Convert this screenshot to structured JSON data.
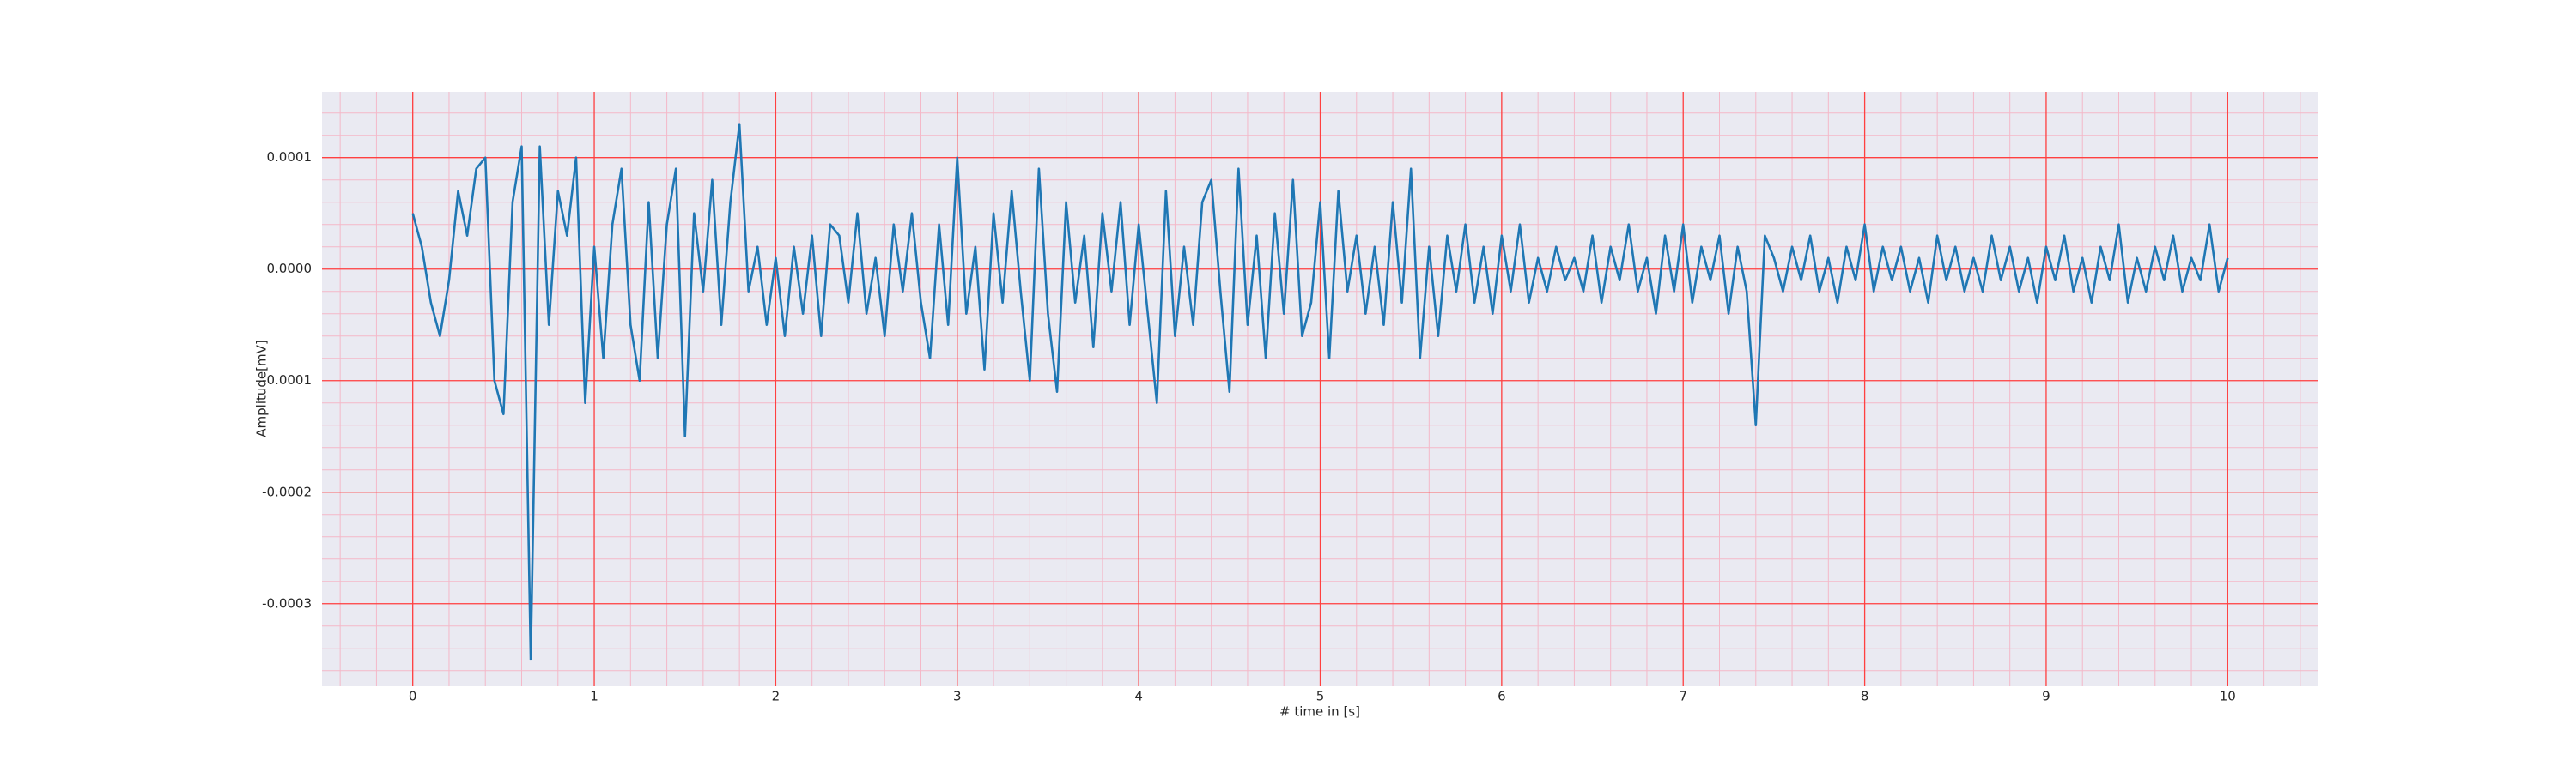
{
  "chart_data": {
    "type": "line",
    "xlabel": "# time in [s]",
    "ylabel": "Amplitude[mV]",
    "xlim": [
      -0.5,
      10.5
    ],
    "ylim": [
      -0.000374,
      0.000159
    ],
    "xticks": [
      0,
      1,
      2,
      3,
      4,
      5,
      6,
      7,
      8,
      9,
      10
    ],
    "yticks": [
      -0.0003,
      -0.0002,
      -0.0001,
      {
        "value": 0,
        "label": "0.0000"
      },
      0.0001
    ],
    "xminorticks": [
      -0.4,
      -0.2,
      0,
      0.2,
      0.4,
      0.6,
      0.8,
      1,
      1.2,
      1.4,
      1.6,
      1.8,
      2,
      2.2,
      2.4,
      2.6,
      2.8,
      3,
      3.2,
      3.4,
      3.6,
      3.8,
      4,
      4.2,
      4.4,
      4.6,
      4.8,
      5,
      5.2,
      5.4,
      5.6,
      5.8,
      6,
      6.2,
      6.4,
      6.6,
      6.8,
      7,
      7.2,
      7.4,
      7.6,
      7.8,
      8,
      8.2,
      8.4,
      8.6,
      8.8,
      9,
      9.2,
      9.4,
      9.6,
      9.8,
      10,
      10.2,
      10.4
    ],
    "yminorticks": [
      -0.00036,
      -0.00034,
      -0.00032,
      -0.0003,
      -0.00028,
      -0.00026,
      -0.00024,
      -0.00022,
      -0.0002,
      -0.00018,
      -0.00016,
      -0.00014,
      -0.00012,
      -0.0001,
      -8e-05,
      -6e-05,
      -4e-05,
      -2e-05,
      0,
      2e-05,
      4e-05,
      6e-05,
      8e-05,
      0.0001,
      0.00012,
      0.00014
    ],
    "grid": true,
    "minor_grid": true,
    "grid_color": "#ff4040",
    "minor_grid_color": "#f4b8c8",
    "background": "#eaeaf2",
    "x": [
      0,
      0.05,
      0.1,
      0.15,
      0.2,
      0.25,
      0.3,
      0.35,
      0.4,
      0.45,
      0.5,
      0.55,
      0.6,
      0.65,
      0.7,
      0.75,
      0.8,
      0.85,
      0.9,
      0.95,
      1,
      1.05,
      1.1,
      1.15,
      1.2,
      1.25,
      1.3,
      1.35,
      1.4,
      1.45,
      1.5,
      1.55,
      1.6,
      1.65,
      1.7,
      1.75,
      1.8,
      1.85,
      1.9,
      1.95,
      2,
      2.05,
      2.1,
      2.15,
      2.2,
      2.25,
      2.3,
      2.35,
      2.4,
      2.45,
      2.5,
      2.55,
      2.6,
      2.65,
      2.7,
      2.75,
      2.8,
      2.85,
      2.9,
      2.95,
      3,
      3.05,
      3.1,
      3.15,
      3.2,
      3.25,
      3.3,
      3.35,
      3.4,
      3.45,
      3.5,
      3.55,
      3.6,
      3.65,
      3.7,
      3.75,
      3.8,
      3.85,
      3.9,
      3.95,
      4,
      4.05,
      4.1,
      4.15,
      4.2,
      4.25,
      4.3,
      4.35,
      4.4,
      4.45,
      4.5,
      4.55,
      4.6,
      4.65,
      4.7,
      4.75,
      4.8,
      4.85,
      4.9,
      4.95,
      5,
      5.05,
      5.1,
      5.15,
      5.2,
      5.25,
      5.3,
      5.35,
      5.4,
      5.45,
      5.5,
      5.55,
      5.6,
      5.65,
      5.7,
      5.75,
      5.8,
      5.85,
      5.9,
      5.95,
      6,
      6.05,
      6.1,
      6.15,
      6.2,
      6.25,
      6.3,
      6.35,
      6.4,
      6.45,
      6.5,
      6.55,
      6.6,
      6.65,
      6.7,
      6.75,
      6.8,
      6.85,
      6.9,
      6.95,
      7,
      7.05,
      7.1,
      7.15,
      7.2,
      7.25,
      7.3,
      7.35,
      7.4,
      7.45,
      7.5,
      7.55,
      7.6,
      7.65,
      7.7,
      7.75,
      7.8,
      7.85,
      7.9,
      7.95,
      8,
      8.05,
      8.1,
      8.15,
      8.2,
      8.25,
      8.3,
      8.35,
      8.4,
      8.45,
      8.5,
      8.55,
      8.6,
      8.65,
      8.7,
      8.75,
      8.8,
      8.85,
      8.9,
      8.95,
      9,
      9.05,
      9.1,
      9.15,
      9.2,
      9.25,
      9.3,
      9.35,
      9.4,
      9.45,
      9.5,
      9.55,
      9.6,
      9.65,
      9.7,
      9.75,
      9.8,
      9.85,
      9.9,
      9.95,
      10
    ],
    "series": [
      {
        "color": "#1f77b4",
        "values": [
          5e-05,
          2e-05,
          -3e-05,
          -6e-05,
          -1e-05,
          7e-05,
          3e-05,
          9e-05,
          0.0001,
          -0.0001,
          -0.00013,
          6e-05,
          0.00011,
          -0.00035,
          0.00011,
          -5e-05,
          7e-05,
          3e-05,
          0.0001,
          -0.00012,
          2e-05,
          -8e-05,
          4e-05,
          9e-05,
          -5e-05,
          -0.0001,
          6e-05,
          -8e-05,
          4e-05,
          9e-05,
          -0.00015,
          5e-05,
          -2e-05,
          8e-05,
          -5e-05,
          6e-05,
          0.00013,
          -2e-05,
          2e-05,
          -5e-05,
          1e-05,
          -6e-05,
          2e-05,
          -4e-05,
          3e-05,
          -6e-05,
          4e-05,
          3e-05,
          -3e-05,
          5e-05,
          -4e-05,
          1e-05,
          -6e-05,
          4e-05,
          -2e-05,
          5e-05,
          -3e-05,
          -8e-05,
          4e-05,
          -5e-05,
          0.0001,
          -4e-05,
          2e-05,
          -9e-05,
          5e-05,
          -3e-05,
          7e-05,
          -2e-05,
          -0.0001,
          9e-05,
          -4e-05,
          -0.00011,
          6e-05,
          -3e-05,
          3e-05,
          -7e-05,
          5e-05,
          -2e-05,
          6e-05,
          -5e-05,
          4e-05,
          -4e-05,
          -0.00012,
          7e-05,
          -6e-05,
          2e-05,
          -5e-05,
          6e-05,
          8e-05,
          -2e-05,
          -0.00011,
          9e-05,
          -5e-05,
          3e-05,
          -8e-05,
          5e-05,
          -4e-05,
          8e-05,
          -6e-05,
          -3e-05,
          6e-05,
          -8e-05,
          7e-05,
          -2e-05,
          3e-05,
          -4e-05,
          2e-05,
          -5e-05,
          6e-05,
          -3e-05,
          9e-05,
          -8e-05,
          2e-05,
          -6e-05,
          3e-05,
          -2e-05,
          4e-05,
          -3e-05,
          2e-05,
          -4e-05,
          3e-05,
          -2e-05,
          4e-05,
          -3e-05,
          1e-05,
          -2e-05,
          2e-05,
          -1e-05,
          1e-05,
          -2e-05,
          3e-05,
          -3e-05,
          2e-05,
          -1e-05,
          4e-05,
          -2e-05,
          1e-05,
          -4e-05,
          3e-05,
          -2e-05,
          4e-05,
          -3e-05,
          2e-05,
          -1e-05,
          3e-05,
          -4e-05,
          2e-05,
          -2e-05,
          -0.00014,
          3e-05,
          1e-05,
          -2e-05,
          2e-05,
          -1e-05,
          3e-05,
          -2e-05,
          1e-05,
          -3e-05,
          2e-05,
          -1e-05,
          4e-05,
          -2e-05,
          2e-05,
          -1e-05,
          2e-05,
          -2e-05,
          1e-05,
          -3e-05,
          3e-05,
          -1e-05,
          2e-05,
          -2e-05,
          1e-05,
          -2e-05,
          3e-05,
          -1e-05,
          2e-05,
          -2e-05,
          1e-05,
          -3e-05,
          2e-05,
          -1e-05,
          3e-05,
          -2e-05,
          1e-05,
          -3e-05,
          2e-05,
          -1e-05,
          4e-05,
          -3e-05,
          1e-05,
          -2e-05,
          2e-05,
          -1e-05,
          3e-05,
          -2e-05,
          1e-05,
          -1e-05,
          4e-05,
          -2e-05,
          1e-05
        ]
      }
    ]
  }
}
